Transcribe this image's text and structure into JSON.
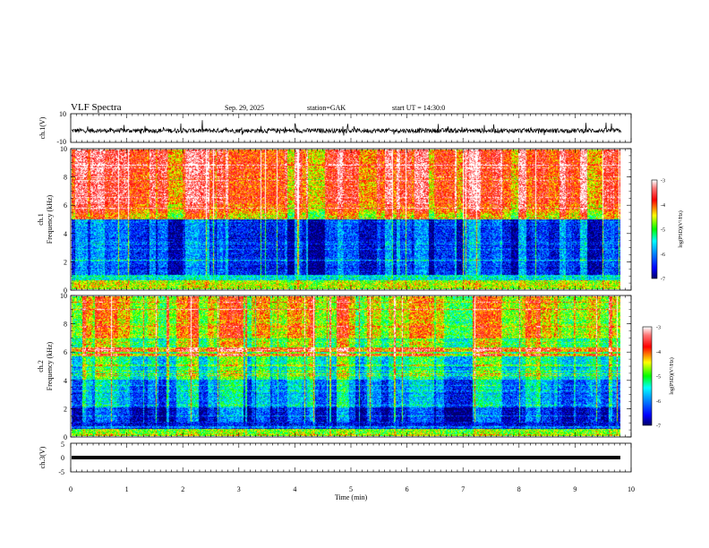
{
  "header": {
    "title": "VLF  Spectra",
    "date": "Sep. 29, 2025",
    "station": "station=GAK",
    "start": "start  UT  =   14:30:0"
  },
  "chart_data": [
    {
      "type": "line",
      "id": "ch1",
      "ylabel": "ch.1(V)",
      "ylim": [
        -10,
        10
      ],
      "yticks": [
        "10",
        "-10"
      ],
      "trace_description": "noise-like waveform near -2 V"
    },
    {
      "type": "heatmap",
      "id": "spec1",
      "ylabel_lines": [
        "ch.1",
        "Frequency  (kHz)"
      ],
      "ylim": [
        0,
        10
      ],
      "yticks": [
        "0",
        "2",
        "4",
        "6",
        "8",
        "10"
      ],
      "colorbar": {
        "label": "log(PSD)(V²/Hz)",
        "ticks": [
          "-3",
          "-4",
          "-5",
          "-6",
          "-7"
        ],
        "range": [
          -7,
          -3
        ]
      }
    },
    {
      "type": "heatmap",
      "id": "spec2",
      "ylabel_lines": [
        "ch.2",
        "Frequency  (kHz)"
      ],
      "ylim": [
        0,
        10
      ],
      "yticks": [
        "0",
        "2",
        "4",
        "6",
        "8",
        "10"
      ],
      "colorbar": {
        "label": "log(PSD)(V²/Hz)",
        "ticks": [
          "-3",
          "-4",
          "-5",
          "-6",
          "-7"
        ],
        "range": [
          -7,
          -3
        ]
      }
    },
    {
      "type": "line",
      "id": "ch3",
      "ylabel": "ch.3(V)",
      "ylim": [
        -5,
        5
      ],
      "yticks": [
        "5",
        "0",
        "-5"
      ],
      "trace_description": "flat band near -0.5 V"
    }
  ],
  "xaxis": {
    "label": "Time  (min)",
    "range": [
      0,
      10
    ],
    "ticks": [
      "0",
      "1",
      "2",
      "3",
      "4",
      "5",
      "6",
      "7",
      "8",
      "9",
      "10"
    ],
    "data_end": 9.83
  },
  "colors": {
    "cmap": [
      "#00007f",
      "#0000ff",
      "#00ffff",
      "#00ff00",
      "#ffff00",
      "#ff0000",
      "#ffffff"
    ]
  }
}
